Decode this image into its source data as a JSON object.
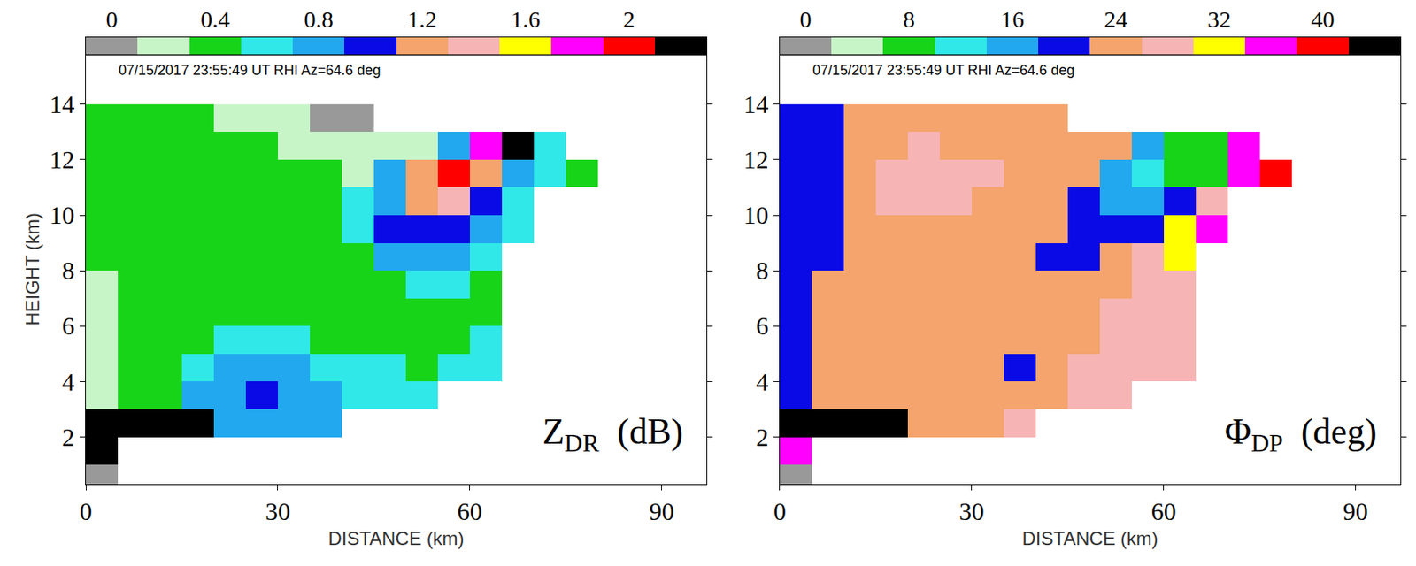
{
  "chart_data": [
    {
      "type": "heatmap",
      "annotation": "07/15/2017 23:55:49 UT RHI Az=64.6 deg",
      "label": {
        "symbol": "Z",
        "subscript": "DR",
        "unit": "(dB)"
      },
      "x_label": "DISTANCE (km)",
      "y_label": "HEIGHT (km)",
      "xlim": [
        0,
        97
      ],
      "ylim": [
        0.3,
        15.8
      ],
      "xticks": [
        0,
        30,
        60,
        90
      ],
      "yticks": [
        2,
        4,
        6,
        8,
        10,
        12,
        14
      ],
      "colorbar": {
        "range": [
          -0.1,
          2.3
        ],
        "ticks": [
          0,
          0.4,
          0.8,
          1.2,
          1.6,
          2
        ]
      },
      "colors": [
        "#999999",
        "#c8f5c8",
        "#18d418",
        "#30e8e8",
        "#22a8ee",
        "#0a0ae6",
        "#f4a46c",
        "#f6b4b4",
        "#ffff00",
        "#ff00ff",
        "#ff0000",
        "#000000"
      ],
      "x": [
        2.5,
        7.5,
        12.5,
        17.5,
        22.5,
        27.5,
        32.5,
        37.5,
        42.5,
        47.5,
        52.5,
        57.5,
        62.5,
        67.5,
        72.5,
        77.5
      ],
      "y": [
        0.5,
        1.5,
        2.5,
        3.5,
        4.5,
        5.5,
        6.5,
        7.5,
        8.5,
        9.5,
        10.5,
        11.5,
        12.5,
        13.5
      ],
      "z": [
        [
          0,
          null,
          null,
          null,
          null,
          null,
          null,
          null,
          null,
          null,
          null,
          null,
          null,
          null,
          null,
          null
        ],
        [
          2.2,
          null,
          null,
          null,
          null,
          null,
          null,
          null,
          null,
          null,
          null,
          null,
          null,
          null,
          null,
          null
        ],
        [
          2.2,
          2.2,
          2.2,
          2.2,
          0.8,
          0.8,
          0.8,
          0.8,
          null,
          null,
          null,
          null,
          null,
          null,
          null,
          null
        ],
        [
          0.2,
          0.4,
          0.4,
          0.8,
          0.8,
          1.0,
          0.8,
          0.8,
          0.6,
          0.6,
          0.6,
          null,
          null,
          null,
          null,
          null
        ],
        [
          0.2,
          0.4,
          0.4,
          0.6,
          0.8,
          0.8,
          0.8,
          0.6,
          0.6,
          0.6,
          0.4,
          0.6,
          0.6,
          null,
          null,
          null
        ],
        [
          0.2,
          0.4,
          0.4,
          0.4,
          0.6,
          0.6,
          0.6,
          0.4,
          0.4,
          0.4,
          0.4,
          0.4,
          0.6,
          null,
          null,
          null
        ],
        [
          0.2,
          0.4,
          0.4,
          0.4,
          0.4,
          0.4,
          0.4,
          0.4,
          0.4,
          0.4,
          0.4,
          0.4,
          0.4,
          null,
          null,
          null
        ],
        [
          0.2,
          0.4,
          0.4,
          0.4,
          0.4,
          0.4,
          0.4,
          0.4,
          0.4,
          0.4,
          0.6,
          0.6,
          0.4,
          null,
          null,
          null
        ],
        [
          0.4,
          0.4,
          0.4,
          0.4,
          0.4,
          0.4,
          0.4,
          0.4,
          0.4,
          0.8,
          0.8,
          0.8,
          0.6,
          null,
          null,
          null
        ],
        [
          0.4,
          0.4,
          0.4,
          0.4,
          0.4,
          0.4,
          0.4,
          0.4,
          0.6,
          1.0,
          1.0,
          1.0,
          0.8,
          0.6,
          null,
          null
        ],
        [
          0.4,
          0.4,
          0.4,
          0.4,
          0.4,
          0.4,
          0.4,
          0.4,
          0.6,
          0.8,
          1.2,
          1.4,
          1.0,
          0.6,
          null,
          null
        ],
        [
          0.4,
          0.4,
          0.4,
          0.4,
          0.4,
          0.4,
          0.4,
          0.4,
          0.2,
          0.8,
          1.2,
          2.0,
          1.2,
          0.8,
          0.6,
          0.4
        ],
        [
          0.4,
          0.4,
          0.4,
          0.4,
          0.4,
          0.4,
          0.2,
          0.2,
          0.2,
          0.2,
          0.2,
          0.8,
          1.8,
          2.2,
          0.6,
          null
        ],
        [
          0.4,
          0.4,
          0.4,
          0.4,
          0.2,
          0.2,
          0.2,
          0,
          0,
          null,
          null,
          null,
          null,
          null,
          null,
          null
        ]
      ]
    },
    {
      "type": "heatmap",
      "annotation": "07/15/2017 23:55:49 UT RHI Az=64.6 deg",
      "label": {
        "symbol": "Φ",
        "subscript": "DP",
        "unit": "(deg)"
      },
      "x_label": "DISTANCE (km)",
      "xlim": [
        0,
        97
      ],
      "ylim": [
        0.3,
        15.8
      ],
      "xticks": [
        0,
        30,
        60,
        90
      ],
      "yticks": [
        2,
        4,
        6,
        8,
        10,
        12,
        14
      ],
      "colorbar": {
        "range": [
          -2,
          46
        ],
        "ticks": [
          0,
          8,
          16,
          24,
          32,
          40
        ]
      },
      "colors": [
        "#999999",
        "#c8f5c8",
        "#18d418",
        "#30e8e8",
        "#22a8ee",
        "#0a0ae6",
        "#f4a46c",
        "#f6b4b4",
        "#ffff00",
        "#ff00ff",
        "#ff0000",
        "#000000"
      ],
      "x": [
        2.5,
        7.5,
        12.5,
        17.5,
        22.5,
        27.5,
        32.5,
        37.5,
        42.5,
        47.5,
        52.5,
        57.5,
        62.5,
        67.5,
        72.5,
        77.5
      ],
      "y": [
        0.5,
        1.5,
        2.5,
        3.5,
        4.5,
        5.5,
        6.5,
        7.5,
        8.5,
        9.5,
        10.5,
        11.5,
        12.5,
        13.5
      ],
      "z": [
        [
          0,
          null,
          null,
          null,
          null,
          null,
          null,
          null,
          null,
          null,
          null,
          null,
          null,
          null,
          null,
          null
        ],
        [
          36,
          null,
          null,
          null,
          null,
          null,
          null,
          null,
          null,
          null,
          null,
          null,
          null,
          null,
          null,
          null
        ],
        [
          44,
          44,
          44,
          44,
          24,
          24,
          24,
          28,
          null,
          null,
          null,
          null,
          null,
          null,
          null,
          null
        ],
        [
          20,
          24,
          24,
          24,
          24,
          24,
          24,
          24,
          24,
          28,
          28,
          null,
          null,
          null,
          null,
          null
        ],
        [
          20,
          24,
          24,
          24,
          24,
          24,
          24,
          20,
          24,
          28,
          28,
          28,
          28,
          null,
          null,
          null
        ],
        [
          20,
          24,
          24,
          24,
          24,
          24,
          24,
          24,
          24,
          24,
          28,
          28,
          28,
          null,
          null,
          null
        ],
        [
          20,
          24,
          24,
          24,
          24,
          24,
          24,
          24,
          24,
          24,
          28,
          28,
          28,
          null,
          null,
          null
        ],
        [
          20,
          24,
          24,
          24,
          24,
          24,
          24,
          24,
          24,
          24,
          24,
          28,
          28,
          null,
          null,
          null
        ],
        [
          20,
          20,
          24,
          24,
          24,
          24,
          24,
          24,
          20,
          20,
          24,
          28,
          32,
          null,
          null,
          null
        ],
        [
          20,
          20,
          24,
          24,
          24,
          24,
          24,
          24,
          24,
          20,
          20,
          20,
          32,
          36,
          null,
          null
        ],
        [
          20,
          20,
          24,
          28,
          28,
          28,
          24,
          24,
          24,
          20,
          16,
          16,
          20,
          28,
          null,
          null
        ],
        [
          20,
          20,
          24,
          28,
          28,
          28,
          28,
          24,
          24,
          24,
          16,
          12,
          8,
          8,
          36,
          40
        ],
        [
          20,
          20,
          24,
          24,
          28,
          24,
          24,
          24,
          24,
          24,
          24,
          16,
          8,
          8,
          36,
          null
        ],
        [
          20,
          20,
          24,
          24,
          24,
          24,
          24,
          24,
          24,
          null,
          null,
          null,
          null,
          null,
          null,
          null
        ]
      ]
    }
  ]
}
